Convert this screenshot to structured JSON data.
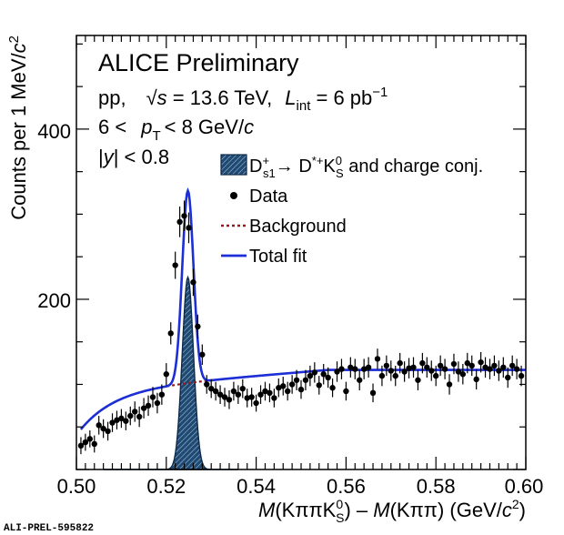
{
  "chart_data": {
    "type": "scatter",
    "experiment": "ALICE Preliminary",
    "collision": "pp,",
    "energy_label": "√s = 13.6 TeV,",
    "energy_symbol": "√",
    "energy_s": "s",
    "energy_value": " = 13.6 TeV,",
    "lumi_symbol": "L",
    "lumi_sub": "int",
    "lumi_value": " = 6 pb",
    "lumi_exp": "−1",
    "pt_low": "6 <",
    "pt_symbol": "p",
    "pt_sub": "T",
    "pt_high": "< 8 GeV/",
    "pt_unit_c": "c",
    "rapidity_label": "|y| < 0.8",
    "rapidity_open": "|",
    "rapidity_y": "y",
    "rapidity_close": "| < 0.8",
    "ylabel": "Counts per 1 MeV/c²",
    "ylabel_main": "Counts per 1 MeV/",
    "ylabel_c": "c",
    "ylabel_exp": "2",
    "xlabel": "M(KππK⁰S) − M(Kππ) (GeV/c²)",
    "xlabel_M1": "M",
    "xlabel_part1": "(KππK",
    "xlabel_K0_sup": "0",
    "xlabel_K0_sub": "S",
    "xlabel_part2": ")   –   ",
    "xlabel_M2": "M",
    "xlabel_part3": "(Kππ) (GeV/",
    "xlabel_c": "c",
    "xlabel_exp": "2",
    "xlabel_close": ")",
    "xlim": [
      0.5,
      0.6
    ],
    "ylim": [
      0,
      510
    ],
    "x_ticks": [
      "0.50",
      "0.52",
      "0.54",
      "0.56",
      "0.58",
      "0.60"
    ],
    "y_ticks": [
      "200",
      "400"
    ],
    "legend_position": "top-right",
    "legend": {
      "signal_D": "D",
      "signal_D_sup": "+",
      "signal_D_sub": "s1",
      "signal_arrow": "→ D",
      "signal_Dstar_sup": "*+",
      "signal_K": "K",
      "signal_K_sup": "0",
      "signal_K_sub": "S",
      "signal_rest": " and charge conj.",
      "data": "Data",
      "background": "Background",
      "total_fit": "Total fit"
    },
    "watermark": "ALI-PREL-595822",
    "colors": {
      "signal_fill": "#1f4a73",
      "signal_edge": "#0d2a4a",
      "data": "#000000",
      "background": "#a31515",
      "total_fit": "#1c2fd6"
    },
    "signal_peak": {
      "mean": 0.5248,
      "sigma": 0.00125,
      "amplitude": 226
    },
    "background_shape": {
      "plateau": 117,
      "threshold": 0.496,
      "scale": 0.09,
      "power": 0.95
    },
    "series": [
      {
        "name": "Data",
        "x": [
          0.501,
          0.502,
          0.503,
          0.504,
          0.505,
          0.506,
          0.507,
          0.508,
          0.509,
          0.51,
          0.511,
          0.512,
          0.513,
          0.514,
          0.515,
          0.516,
          0.517,
          0.518,
          0.519,
          0.52,
          0.521,
          0.522,
          0.523,
          0.524,
          0.525,
          0.526,
          0.527,
          0.528,
          0.529,
          0.53,
          0.531,
          0.532,
          0.533,
          0.534,
          0.535,
          0.536,
          0.537,
          0.538,
          0.539,
          0.54,
          0.541,
          0.542,
          0.543,
          0.544,
          0.545,
          0.546,
          0.547,
          0.548,
          0.549,
          0.55,
          0.551,
          0.552,
          0.553,
          0.554,
          0.555,
          0.556,
          0.557,
          0.558,
          0.559,
          0.56,
          0.561,
          0.562,
          0.563,
          0.564,
          0.565,
          0.566,
          0.567,
          0.568,
          0.569,
          0.57,
          0.571,
          0.572,
          0.573,
          0.574,
          0.575,
          0.576,
          0.577,
          0.578,
          0.579,
          0.58,
          0.581,
          0.582,
          0.583,
          0.584,
          0.585,
          0.586,
          0.587,
          0.588,
          0.589,
          0.59,
          0.591,
          0.592,
          0.593,
          0.594,
          0.595,
          0.596,
          0.597,
          0.598,
          0.599
        ],
        "y": [
          28,
          32,
          36,
          30,
          52,
          48,
          45,
          55,
          58,
          60,
          57,
          63,
          68,
          62,
          72,
          75,
          85,
          78,
          88,
          112,
          160,
          240,
          291,
          298,
          284,
          220,
          168,
          135,
          100,
          95,
          92,
          88,
          85,
          82,
          92,
          88,
          95,
          84,
          85,
          78,
          88,
          92,
          90,
          84,
          96,
          98,
          92,
          100,
          105,
          94,
          105,
          110,
          114,
          99,
          112,
          108,
          96,
          115,
          118,
          92,
          120,
          118,
          105,
          118,
          120,
          90,
          130,
          110,
          122,
          116,
          110,
          125,
          115,
          119,
          120,
          105,
          125,
          120,
          116,
          110,
          122,
          118,
          100,
          124,
          115,
          112,
          125,
          122,
          106,
          126,
          120,
          118,
          122,
          116,
          120,
          108,
          122,
          118,
          110
        ],
        "err": [
          10,
          10,
          10,
          10,
          11,
          11,
          11,
          11,
          11,
          11,
          11,
          11,
          12,
          12,
          12,
          12,
          12,
          12,
          12,
          13,
          13,
          16,
          18,
          18,
          18,
          16,
          14,
          12,
          11,
          11,
          11,
          11,
          11,
          11,
          11,
          11,
          11,
          11,
          11,
          10,
          11,
          11,
          11,
          11,
          11,
          11,
          11,
          11,
          12,
          11,
          12,
          12,
          12,
          11,
          12,
          12,
          11,
          12,
          12,
          11,
          12,
          12,
          12,
          12,
          12,
          11,
          12,
          12,
          12,
          12,
          12,
          12,
          12,
          12,
          12,
          12,
          12,
          12,
          12,
          12,
          12,
          12,
          12,
          12,
          12,
          12,
          12,
          12,
          12,
          12,
          12,
          12,
          12,
          12,
          12,
          12,
          12,
          12,
          12
        ]
      }
    ]
  }
}
